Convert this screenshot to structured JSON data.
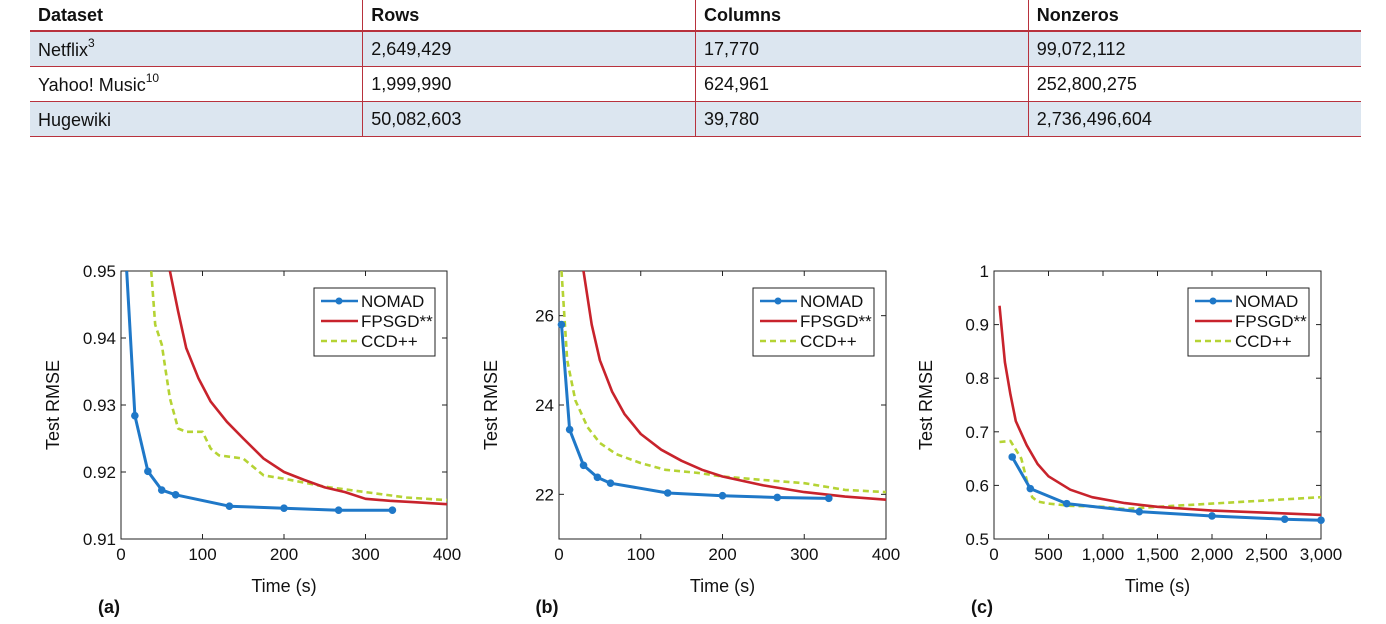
{
  "table": {
    "headers": [
      "Dataset",
      "Rows",
      "Columns",
      "Nonzeros"
    ],
    "rows": [
      {
        "name": "Netflix",
        "ref": "3",
        "rows": "2,649,429",
        "columns": "17,770",
        "nonzeros": "99,072,112"
      },
      {
        "name": "Yahoo! Music",
        "ref": "10",
        "rows": "1,999,990",
        "columns": "624,961",
        "nonzeros": "252,800,275"
      },
      {
        "name": "Hugewiki",
        "ref": "",
        "rows": "50,082,603",
        "columns": "39,780",
        "nonzeros": "2,736,496,604"
      }
    ]
  },
  "colors": {
    "nomad": "#1f78c8",
    "fpsgd": "#c8232c",
    "ccd": "#b5d334",
    "table_rule": "#b8323d",
    "table_shade": "#dce6f0"
  },
  "chart_data": [
    {
      "type": "line",
      "panel_label": "(a)",
      "xlabel": "Time (s)",
      "ylabel": "Test RMSE",
      "xlim": [
        0,
        400
      ],
      "ylim": [
        0.91,
        0.95
      ],
      "xticks": [
        0,
        100,
        200,
        300,
        400
      ],
      "yticks": [
        0.91,
        0.92,
        0.93,
        0.94,
        0.95
      ],
      "xtick_labels": [
        "0",
        "100",
        "200",
        "300",
        "400"
      ],
      "ytick_labels": [
        "0.91",
        "0.92",
        "0.93",
        "0.94",
        "0.95"
      ],
      "legend_position": "top-right",
      "series": [
        {
          "name": "NOMAD",
          "key": "nomad",
          "markers": true,
          "x": [
            7,
            17,
            33,
            50,
            67,
            133,
            200,
            267,
            333
          ],
          "y": [
            0.95,
            0.9284,
            0.9201,
            0.9173,
            0.9166,
            0.9149,
            0.9146,
            0.9143,
            0.9143
          ]
        },
        {
          "name": "FPSGD**",
          "key": "fpsgd",
          "markers": false,
          "x": [
            60,
            70,
            80,
            95,
            110,
            130,
            150,
            175,
            200,
            225,
            250,
            275,
            300,
            330,
            360,
            400
          ],
          "y": [
            0.95,
            0.944,
            0.9385,
            0.934,
            0.9305,
            0.9275,
            0.925,
            0.922,
            0.92,
            0.9188,
            0.9177,
            0.917,
            0.916,
            0.9157,
            0.9155,
            0.9152
          ]
        },
        {
          "name": "CCD++",
          "key": "ccd",
          "markers": false,
          "x": [
            37,
            42,
            50,
            55,
            60,
            70,
            80,
            100,
            110,
            120,
            150,
            175,
            200,
            250,
            300,
            350,
            400
          ],
          "y": [
            0.95,
            0.942,
            0.939,
            0.935,
            0.931,
            0.9265,
            0.926,
            0.926,
            0.9235,
            0.9225,
            0.922,
            0.9195,
            0.919,
            0.9178,
            0.917,
            0.9162,
            0.9158
          ]
        }
      ]
    },
    {
      "type": "line",
      "panel_label": "(b)",
      "xlabel": "Time (s)",
      "ylabel": "Test RMSE",
      "xlim": [
        0,
        400
      ],
      "ylim": [
        21,
        27
      ],
      "xticks": [
        0,
        100,
        200,
        300,
        400
      ],
      "yticks": [
        22,
        24,
        26
      ],
      "xtick_labels": [
        "0",
        "100",
        "200",
        "300",
        "400"
      ],
      "ytick_labels": [
        "22",
        "24",
        "26"
      ],
      "legend_position": "top-right",
      "series": [
        {
          "name": "NOMAD",
          "key": "nomad",
          "markers": true,
          "x": [
            3,
            13,
            30,
            47,
            63,
            133,
            200,
            267,
            330
          ],
          "y": [
            25.8,
            23.45,
            22.65,
            22.38,
            22.25,
            22.03,
            21.97,
            21.93,
            21.91
          ]
        },
        {
          "name": "FPSGD**",
          "key": "fpsgd",
          "markers": false,
          "x": [
            30,
            40,
            50,
            65,
            80,
            100,
            125,
            150,
            175,
            200,
            250,
            300,
            350,
            400
          ],
          "y": [
            27,
            25.8,
            25.0,
            24.3,
            23.8,
            23.35,
            23.0,
            22.75,
            22.55,
            22.4,
            22.2,
            22.05,
            21.95,
            21.88
          ]
        },
        {
          "name": "CCD++",
          "key": "ccd",
          "markers": false,
          "x": [
            3,
            10,
            20,
            35,
            50,
            70,
            100,
            130,
            170,
            200,
            250,
            300,
            350,
            400
          ],
          "y": [
            27,
            25.0,
            24.1,
            23.5,
            23.15,
            22.9,
            22.7,
            22.55,
            22.48,
            22.4,
            22.32,
            22.25,
            22.1,
            22.05
          ]
        }
      ]
    },
    {
      "type": "line",
      "panel_label": "(c)",
      "xlabel": "Time (s)",
      "ylabel": "Test RMSE",
      "xlim": [
        0,
        3000
      ],
      "ylim": [
        0.5,
        1.0
      ],
      "xticks": [
        0,
        500,
        1000,
        1500,
        2000,
        2500,
        3000
      ],
      "yticks": [
        0.5,
        0.6,
        0.7,
        0.8,
        0.9,
        1.0
      ],
      "xtick_labels": [
        "0",
        "500",
        "1,000",
        "1,500",
        "2,000",
        "2,500",
        "3,000"
      ],
      "ytick_labels": [
        "0.5",
        "0.6",
        "0.7",
        "0.8",
        "0.9",
        "1"
      ],
      "legend_position": "top-right",
      "series": [
        {
          "name": "NOMAD",
          "key": "nomad",
          "markers": true,
          "x": [
            167,
            333,
            667,
            1333,
            2000,
            2667,
            3000
          ],
          "y": [
            0.653,
            0.594,
            0.566,
            0.551,
            0.543,
            0.537,
            0.535
          ]
        },
        {
          "name": "FPSGD**",
          "key": "fpsgd",
          "markers": false,
          "x": [
            50,
            100,
            150,
            200,
            300,
            400,
            500,
            700,
            900,
            1200,
            1500,
            2000,
            2500,
            3000
          ],
          "y": [
            0.935,
            0.83,
            0.77,
            0.72,
            0.675,
            0.64,
            0.617,
            0.592,
            0.578,
            0.567,
            0.56,
            0.553,
            0.549,
            0.545
          ]
        },
        {
          "name": "CCD++",
          "key": "ccd",
          "markers": false,
          "x": [
            50,
            150,
            250,
            300,
            350,
            400,
            500,
            700,
            1000,
            1200,
            1500,
            2000,
            2500,
            3000
          ],
          "y": [
            0.681,
            0.683,
            0.65,
            0.61,
            0.578,
            0.57,
            0.566,
            0.562,
            0.56,
            0.556,
            0.56,
            0.566,
            0.572,
            0.578
          ]
        }
      ]
    }
  ]
}
